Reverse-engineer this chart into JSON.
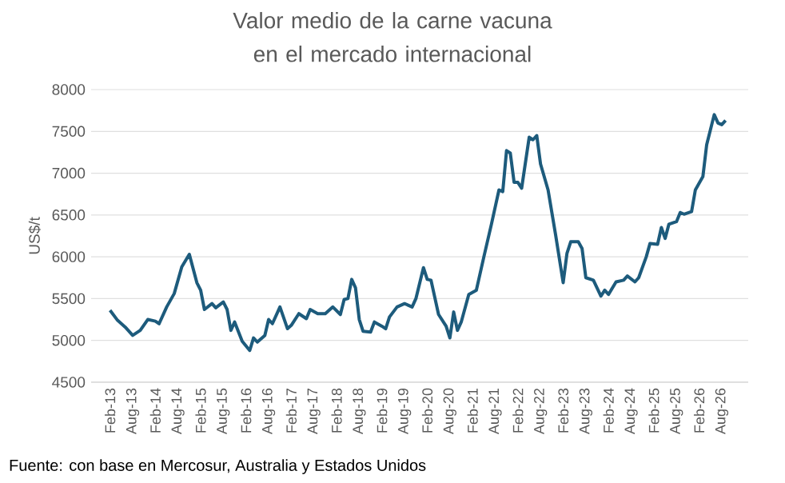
{
  "chart_data": {
    "type": "line",
    "title": "Valor medio de la carne vacuna en el mercado internacional",
    "ylabel": "US$/t",
    "annotations": [
      "Fuente: con base en Mercosur, Australia y Estados Unidos"
    ],
    "x": [
      "2013-02",
      "2013-04",
      "2013-06",
      "2013-08",
      "2013-10",
      "2013-12",
      "2014-02",
      "2014-03",
      "2014-05",
      "2014-07",
      "2014-09",
      "2014-11",
      "2015-01",
      "2015-02",
      "2015-03",
      "2015-05",
      "2015-06",
      "2015-08",
      "2015-09",
      "2015-10",
      "2015-11",
      "2016-01",
      "2016-03",
      "2016-04",
      "2016-05",
      "2016-07",
      "2016-08",
      "2016-09",
      "2016-11",
      "2017-01",
      "2017-02",
      "2017-04",
      "2017-06",
      "2017-07",
      "2017-09",
      "2017-11",
      "2018-01",
      "2018-03",
      "2018-04",
      "2018-05",
      "2018-06",
      "2018-07",
      "2018-08",
      "2018-09",
      "2018-11",
      "2018-12",
      "2019-02",
      "2019-03",
      "2019-04",
      "2019-06",
      "2019-08",
      "2019-10",
      "2019-11",
      "2020-01",
      "2020-02",
      "2020-03",
      "2020-05",
      "2020-07",
      "2020-08",
      "2020-09",
      "2020-10",
      "2020-11",
      "2021-01",
      "2021-03",
      "2021-05",
      "2021-07",
      "2021-09",
      "2021-10",
      "2021-11",
      "2021-12",
      "2022-01",
      "2022-02",
      "2022-03",
      "2022-05",
      "2022-06",
      "2022-07",
      "2022-08",
      "2022-10",
      "2022-12",
      "2023-02",
      "2023-03",
      "2023-04",
      "2023-06",
      "2023-07",
      "2023-08",
      "2023-10",
      "2023-12",
      "2024-01",
      "2024-02",
      "2024-04",
      "2024-06",
      "2024-07",
      "2024-09",
      "2024-10",
      "2024-12",
      "2025-01",
      "2025-03",
      "2025-04",
      "2025-05",
      "2025-06",
      "2025-08",
      "2025-09",
      "2025-10",
      "2025-12",
      "2026-01",
      "2026-03",
      "2026-04",
      "2026-06",
      "2026-07",
      "2026-08",
      "2026-09"
    ],
    "series": [
      {
        "color": "#1d5b7c",
        "values": [
          5360,
          5240,
          5160,
          5060,
          5120,
          5250,
          5230,
          5200,
          5400,
          5560,
          5880,
          6030,
          5690,
          5600,
          5370,
          5440,
          5390,
          5460,
          5370,
          5120,
          5220,
          4990,
          4880,
          5030,
          4980,
          5060,
          5250,
          5200,
          5400,
          5140,
          5180,
          5320,
          5260,
          5370,
          5320,
          5320,
          5400,
          5310,
          5490,
          5500,
          5730,
          5630,
          5250,
          5110,
          5100,
          5220,
          5170,
          5140,
          5280,
          5400,
          5440,
          5400,
          5500,
          5870,
          5730,
          5720,
          5310,
          5170,
          5030,
          5340,
          5120,
          5220,
          5550,
          5600,
          6000,
          6390,
          6800,
          6780,
          7270,
          7240,
          6890,
          6890,
          6820,
          7430,
          7400,
          7450,
          7110,
          6800,
          6260,
          5690,
          6040,
          6180,
          6180,
          6100,
          5750,
          5720,
          5530,
          5600,
          5550,
          5700,
          5720,
          5770,
          5700,
          5750,
          6000,
          6160,
          6150,
          6350,
          6220,
          6390,
          6420,
          6530,
          6510,
          6540,
          6800,
          6960,
          7340,
          7700,
          7600,
          7580,
          7630
        ]
      }
    ],
    "xlim": [
      "2012-09",
      "2027-03"
    ],
    "xticks": [
      {
        "value": "2013-02",
        "label": "Feb-13"
      },
      {
        "value": "2013-08",
        "label": "Aug-13"
      },
      {
        "value": "2014-02",
        "label": "Feb-14"
      },
      {
        "value": "2014-08",
        "label": "Aug-14"
      },
      {
        "value": "2015-02",
        "label": "Feb-15"
      },
      {
        "value": "2015-08",
        "label": "Aug-15"
      },
      {
        "value": "2016-02",
        "label": "Feb-16"
      },
      {
        "value": "2016-08",
        "label": "Aug-16"
      },
      {
        "value": "2017-02",
        "label": "Feb-17"
      },
      {
        "value": "2017-08",
        "label": "Aug-17"
      },
      {
        "value": "2018-02",
        "label": "Feb-18"
      },
      {
        "value": "2018-08",
        "label": "Aug-18"
      },
      {
        "value": "2019-02",
        "label": "Feb-19"
      },
      {
        "value": "2019-08",
        "label": "Aug-19"
      },
      {
        "value": "2020-02",
        "label": "Feb-20"
      },
      {
        "value": "2020-08",
        "label": "Aug-20"
      },
      {
        "value": "2021-02",
        "label": "Feb-21"
      },
      {
        "value": "2021-08",
        "label": "Aug-21"
      },
      {
        "value": "2022-02",
        "label": "Feb-22"
      },
      {
        "value": "2022-08",
        "label": "Aug-22"
      },
      {
        "value": "2023-02",
        "label": "Feb-23"
      },
      {
        "value": "2023-08",
        "label": "Aug-23"
      },
      {
        "value": "2024-02",
        "label": "Feb-24"
      },
      {
        "value": "2024-08",
        "label": "Aug-24"
      },
      {
        "value": "2025-02",
        "label": "Feb-25"
      },
      {
        "value": "2025-08",
        "label": "Aug-25"
      },
      {
        "value": "2026-02",
        "label": "Feb-26"
      },
      {
        "value": "2026-08",
        "label": "Aug-26"
      }
    ],
    "ylim": [
      4500,
      8000
    ],
    "yticks": [
      4500,
      5000,
      5500,
      6000,
      6500,
      7000,
      7500,
      8000
    ],
    "grid": "y",
    "marker": "none",
    "line_style": "solid"
  }
}
